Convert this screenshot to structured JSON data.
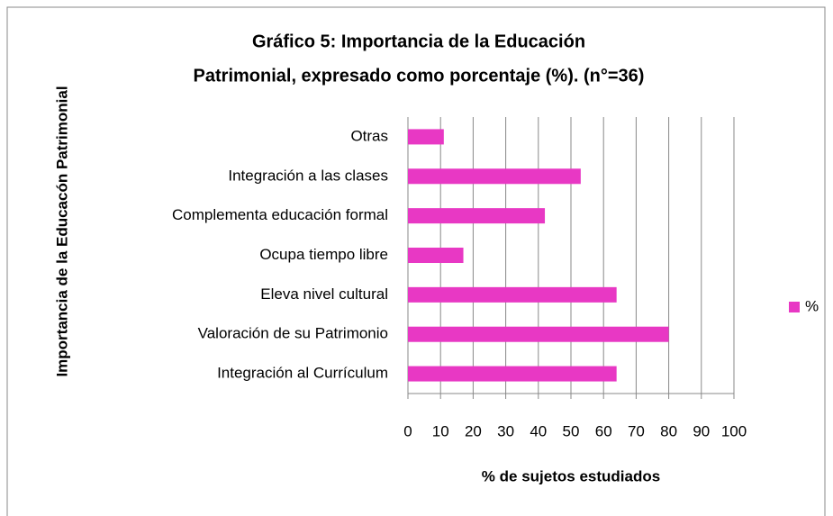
{
  "chart_data": {
    "type": "hbar",
    "title": [
      "Gráfico 5: Importancia de la Educación",
      "Patrimonial, expresado como porcentaje (%). (n°=36)"
    ],
    "x_label": "% de sujetos estudiados",
    "y_label": "Importancia de la Educacón Patrimonial",
    "categories": [
      "Otras",
      "Integración a las clases",
      "Complementa educación formal",
      "Ocupa tiempo libre",
      "Eleva nivel cultural",
      "Valoración de su Patrimonio",
      "Integración al Currículum"
    ],
    "series": [
      {
        "name": "%",
        "color": "#e838c4",
        "values": [
          11,
          53,
          42,
          17,
          64,
          80,
          64
        ]
      }
    ],
    "xlim": [
      0,
      100
    ],
    "xticks": [
      0,
      10,
      20,
      30,
      40,
      50,
      60,
      70,
      80,
      90,
      100
    ],
    "grid": true,
    "legend": "right"
  }
}
